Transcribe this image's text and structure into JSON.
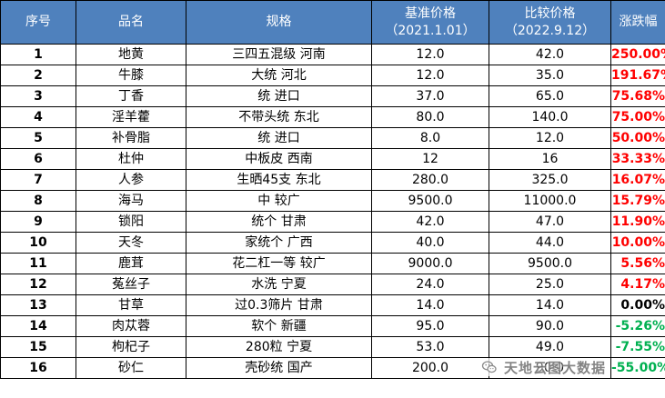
{
  "table": {
    "headers": {
      "no": "序号",
      "name": "品名",
      "spec": "规格",
      "base_price": "基准价格",
      "base_date": "（2021.1.01）",
      "compare_price": "比较价格",
      "compare_date": "（2022.9.12）",
      "change": "涨跌幅"
    },
    "rows": [
      {
        "no": "1",
        "name": "地黄",
        "spec": "三四五混级 河南",
        "base": "12.0",
        "compare": "42.0",
        "change": "250.00%",
        "direction": "up"
      },
      {
        "no": "2",
        "name": "牛膝",
        "spec": "大统 河北",
        "base": "12.0",
        "compare": "35.0",
        "change": "191.67%",
        "direction": "up"
      },
      {
        "no": "3",
        "name": "丁香",
        "spec": "统 进口",
        "base": "37.0",
        "compare": "65.0",
        "change": "75.68%",
        "direction": "up"
      },
      {
        "no": "4",
        "name": "淫羊藿",
        "spec": "不带头统 东北",
        "base": "80.0",
        "compare": "140.0",
        "change": "75.00%",
        "direction": "up"
      },
      {
        "no": "5",
        "name": "补骨脂",
        "spec": "统 进口",
        "base": "8.0",
        "compare": "12.0",
        "change": "50.00%",
        "direction": "up"
      },
      {
        "no": "6",
        "name": "杜仲",
        "spec": "中板皮 西南",
        "base": "12",
        "compare": "16",
        "change": "33.33%",
        "direction": "up"
      },
      {
        "no": "7",
        "name": "人参",
        "spec": "生晒45支 东北",
        "base": "280.0",
        "compare": "325.0",
        "change": "16.07%",
        "direction": "up"
      },
      {
        "no": "8",
        "name": "海马",
        "spec": "中 较广",
        "base": "9500.0",
        "compare": "11000.0",
        "change": "15.79%",
        "direction": "up"
      },
      {
        "no": "9",
        "name": "锁阳",
        "spec": "统个 甘肃",
        "base": "42.0",
        "compare": "47.0",
        "change": "11.90%",
        "direction": "up"
      },
      {
        "no": "10",
        "name": "天冬",
        "spec": "家统个 广西",
        "base": "40.0",
        "compare": "44.0",
        "change": "10.00%",
        "direction": "up"
      },
      {
        "no": "11",
        "name": "鹿茸",
        "spec": "花二杠一等 较广",
        "base": "9000.0",
        "compare": "9500.0",
        "change": "5.56%",
        "direction": "up"
      },
      {
        "no": "12",
        "name": "菟丝子",
        "spec": "水洗 宁夏",
        "base": "24.0",
        "compare": "25.0",
        "change": "4.17%",
        "direction": "up"
      },
      {
        "no": "13",
        "name": "甘草",
        "spec": "过0.3筛片 甘肃",
        "base": "14.0",
        "compare": "14.0",
        "change": "0.00%",
        "direction": "flat"
      },
      {
        "no": "14",
        "name": "肉苁蓉",
        "spec": "软个 新疆",
        "base": "95.0",
        "compare": "90.0",
        "change": "-5.26%",
        "direction": "down"
      },
      {
        "no": "15",
        "name": "枸杞子",
        "spec": "280粒 宁夏",
        "base": "53.0",
        "compare": "49.0",
        "change": "-7.55%",
        "direction": "down"
      },
      {
        "no": "16",
        "name": "砂仁",
        "spec": "壳砂统 国产",
        "base": "200.0",
        "compare": "90.0",
        "change": "-55.00%",
        "direction": "down"
      }
    ]
  },
  "watermark": {
    "text": "天地云图大数据",
    "icon": "wechat-icon"
  },
  "colors": {
    "header_bg": "#4f81bd",
    "header_text": "#ffffff",
    "up": "#ff0000",
    "down": "#00b050",
    "flat": "#000000"
  }
}
